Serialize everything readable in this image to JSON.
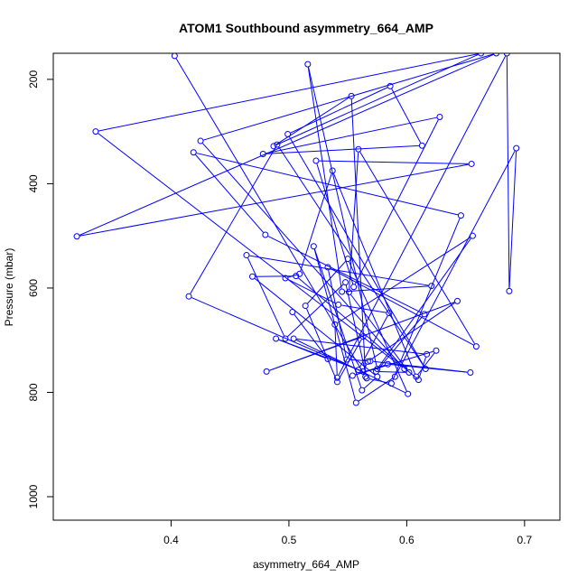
{
  "chart_data": {
    "type": "line",
    "title": "ATOM1 Southbound asymmetry_664_AMP",
    "xlabel": "asymmetry_664_AMP",
    "ylabel": "Pressure (mbar)",
    "xlim": [
      0.3,
      0.73
    ],
    "ylim": [
      1045,
      150
    ],
    "y_reversed": true,
    "x_ticks": [
      0.4,
      0.5,
      0.6,
      0.7
    ],
    "x_tick_labels": [
      "0.4",
      "0.5",
      "0.6",
      "0.7"
    ],
    "y_ticks": [
      200,
      400,
      600,
      800,
      1000
    ],
    "y_tick_labels": [
      "200",
      "400",
      "600",
      "800",
      "1000"
    ],
    "grid": false,
    "legend": "none",
    "colors": {
      "series": "#0000ff",
      "axes": "#000000",
      "background": "#ffffff"
    },
    "series": [
      {
        "points": [
          [
            0.403,
            155
          ],
          [
            0.565,
            770
          ],
          [
            0.553,
            232
          ],
          [
            0.487,
            328
          ],
          [
            0.663,
            150
          ],
          [
            0.336,
            300
          ],
          [
            0.598,
            755
          ],
          [
            0.425,
            318
          ],
          [
            0.676,
            150
          ],
          [
            0.32,
            501
          ],
          [
            0.655,
            362
          ],
          [
            0.523,
            356
          ],
          [
            0.555,
            598
          ],
          [
            0.628,
            272
          ],
          [
            0.478,
            343
          ],
          [
            0.613,
            327
          ],
          [
            0.586,
            213
          ],
          [
            0.499,
            305
          ],
          [
            0.616,
            755
          ],
          [
            0.49,
            325
          ],
          [
            0.415,
            616
          ],
          [
            0.559,
            757
          ],
          [
            0.585,
            648
          ],
          [
            0.542,
            632
          ],
          [
            0.497,
            581
          ],
          [
            0.509,
            573
          ],
          [
            0.537,
            375
          ],
          [
            0.608,
            770
          ],
          [
            0.625,
            720
          ],
          [
            0.554,
            768
          ],
          [
            0.584,
            746
          ],
          [
            0.654,
            762
          ],
          [
            0.569,
            740
          ],
          [
            0.549,
            737
          ],
          [
            0.533,
            560
          ],
          [
            0.659,
            712
          ],
          [
            0.559,
            334
          ],
          [
            0.551,
            608
          ],
          [
            0.602,
            762
          ],
          [
            0.574,
            760
          ],
          [
            0.615,
            650
          ],
          [
            0.48,
            498
          ],
          [
            0.419,
            340
          ],
          [
            0.646,
            461
          ],
          [
            0.587,
            783
          ],
          [
            0.566,
            773
          ],
          [
            0.548,
            589
          ],
          [
            0.497,
            697
          ],
          [
            0.464,
            537
          ],
          [
            0.621,
            596
          ],
          [
            0.545,
            607
          ],
          [
            0.516,
            171
          ],
          [
            0.575,
            755
          ],
          [
            0.656,
            500
          ],
          [
            0.539,
            670
          ],
          [
            0.541,
            772
          ],
          [
            0.685,
            150
          ],
          [
            0.687,
            606
          ],
          [
            0.693,
            332
          ],
          [
            0.59,
            770
          ],
          [
            0.557,
            820
          ],
          [
            0.521,
            520
          ],
          [
            0.562,
            796
          ],
          [
            0.575,
            770
          ],
          [
            0.469,
            578
          ],
          [
            0.506,
            577
          ],
          [
            0.61,
            776
          ],
          [
            0.617,
            727
          ],
          [
            0.504,
            697
          ],
          [
            0.601,
            803
          ],
          [
            0.55,
            544
          ],
          [
            0.514,
            634
          ],
          [
            0.541,
            780
          ],
          [
            0.563,
            693
          ],
          [
            0.481,
            760
          ],
          [
            0.643,
            625
          ],
          [
            0.567,
            741
          ],
          [
            0.563,
            760
          ],
          [
            0.489,
            697
          ],
          [
            0.533,
            736
          ],
          [
            0.503,
            646
          ]
        ]
      }
    ]
  }
}
